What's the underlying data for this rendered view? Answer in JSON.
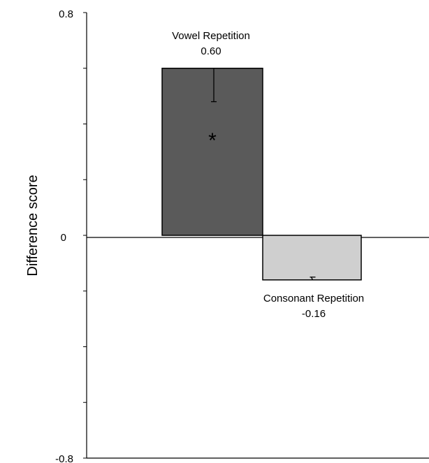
{
  "chart_data": {
    "type": "bar",
    "ylabel": "Difference score",
    "ylim": [
      -0.8,
      0.8
    ],
    "y_tick_labels": [
      "0.8",
      "0",
      "-0.8"
    ],
    "y_tick_values": [
      0.8,
      0,
      -0.8
    ],
    "minor_tick_step": 0.2,
    "grid": false,
    "bars": [
      {
        "category": "Vowel Repetition",
        "value_label": "0.60",
        "value": 0.6,
        "error": 0.12,
        "error_direction": "down",
        "color": "#5a5a5a",
        "annotation": "*"
      },
      {
        "category": "Consonant Repetition",
        "value_label": "-0.16",
        "value": -0.16,
        "error": 0.01,
        "error_direction": "up",
        "color": "#cfcfcf",
        "annotation": ""
      }
    ]
  }
}
